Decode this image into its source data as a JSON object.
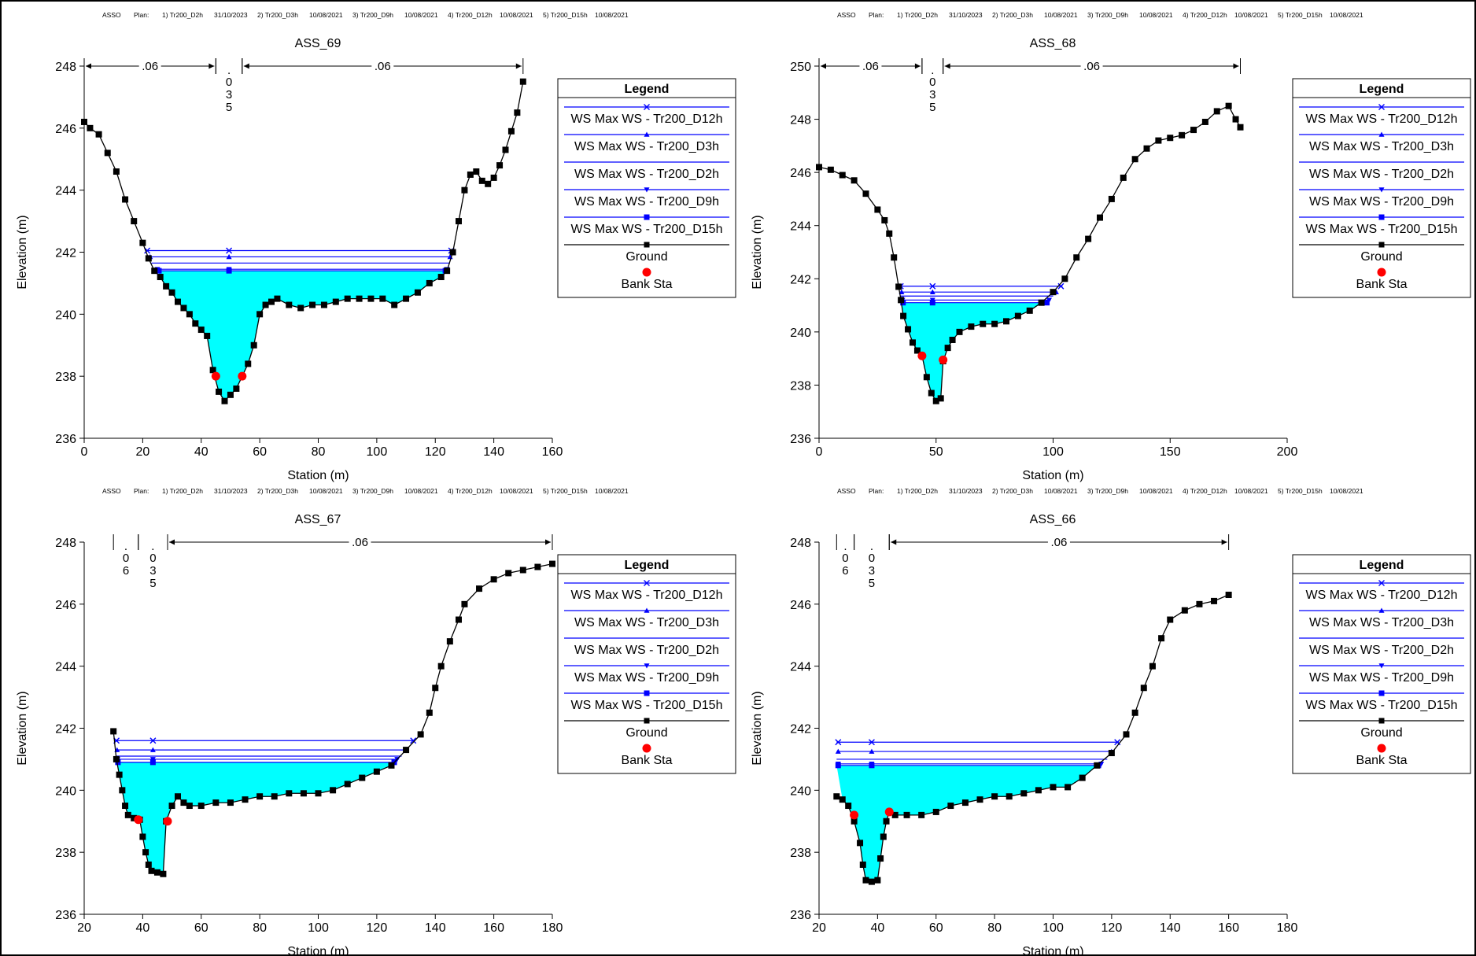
{
  "header": {
    "project": "ASSO",
    "plan_label": "Plan:",
    "plans": [
      {
        "label": "1) Tr200_D2h",
        "date": "31/10/2023"
      },
      {
        "label": "2) Tr200_D3h",
        "date": "10/08/2021"
      },
      {
        "label": "3) Tr200_D9h",
        "date": "10/08/2021"
      },
      {
        "label": "4) Tr200_D12h",
        "date": "10/08/2021"
      },
      {
        "label": "5) Tr200_D15h",
        "date": "10/08/2021"
      }
    ]
  },
  "colors": {
    "water_fill": "#00ffff",
    "ws_line": "#0000ff",
    "ground": "#000000",
    "bank": "#ff0000",
    "axis": "#000000"
  },
  "legend": {
    "title": "Legend",
    "entries": [
      {
        "label": "WS Max WS - Tr200_D12h",
        "marker": "x",
        "color": "#0000ff"
      },
      {
        "label": "WS Max WS - Tr200_D3h",
        "marker": "triangle-up",
        "color": "#0000ff"
      },
      {
        "label": "WS Max WS - Tr200_D2h",
        "marker": "none",
        "color": "#0000ff"
      },
      {
        "label": "WS Max WS - Tr200_D9h",
        "marker": "triangle-down",
        "color": "#0000ff"
      },
      {
        "label": "WS Max WS - Tr200_D15h",
        "marker": "square",
        "color": "#0000ff"
      },
      {
        "label": "Ground",
        "marker": "square",
        "color": "#000000"
      },
      {
        "label": "Bank Sta",
        "marker": "circle",
        "color": "#ff0000"
      }
    ]
  },
  "chart_data": [
    {
      "type": "area",
      "title": "ASS_69",
      "xlabel": "Station (m)",
      "ylabel": "Elevation (m)",
      "xlim": [
        0,
        160
      ],
      "ylim": [
        236,
        248
      ],
      "xticks": [
        0,
        20,
        40,
        60,
        80,
        100,
        120,
        140,
        160
      ],
      "yticks": [
        236,
        238,
        240,
        242,
        244,
        246,
        248
      ],
      "grid": false,
      "legend_position": "right",
      "ground": [
        [
          0,
          246.2
        ],
        [
          2,
          246
        ],
        [
          5,
          245.8
        ],
        [
          8,
          245.2
        ],
        [
          11,
          244.6
        ],
        [
          14,
          243.7
        ],
        [
          17,
          243.0
        ],
        [
          20,
          242.3
        ],
        [
          22,
          241.8
        ],
        [
          24,
          241.4
        ],
        [
          26,
          241.2
        ],
        [
          28,
          240.9
        ],
        [
          30,
          240.7
        ],
        [
          32,
          240.4
        ],
        [
          34,
          240.2
        ],
        [
          36,
          240.0
        ],
        [
          38,
          239.7
        ],
        [
          40,
          239.5
        ],
        [
          42,
          239.3
        ],
        [
          44,
          238.2
        ],
        [
          46,
          237.5
        ],
        [
          48,
          237.2
        ],
        [
          50,
          237.4
        ],
        [
          52,
          237.6
        ],
        [
          54,
          238.0
        ],
        [
          56,
          238.4
        ],
        [
          58,
          239.0
        ],
        [
          60,
          240.0
        ],
        [
          62,
          240.3
        ],
        [
          64,
          240.4
        ],
        [
          66,
          240.5
        ],
        [
          70,
          240.3
        ],
        [
          74,
          240.2
        ],
        [
          78,
          240.3
        ],
        [
          82,
          240.3
        ],
        [
          86,
          240.4
        ],
        [
          90,
          240.5
        ],
        [
          94,
          240.5
        ],
        [
          98,
          240.5
        ],
        [
          102,
          240.5
        ],
        [
          106,
          240.3
        ],
        [
          110,
          240.5
        ],
        [
          114,
          240.7
        ],
        [
          118,
          241.0
        ],
        [
          122,
          241.2
        ],
        [
          124,
          241.4
        ],
        [
          126,
          242.0
        ],
        [
          128,
          243.0
        ],
        [
          130,
          244.0
        ],
        [
          132,
          244.5
        ],
        [
          134,
          244.6
        ],
        [
          136,
          244.3
        ],
        [
          138,
          244.2
        ],
        [
          140,
          244.4
        ],
        [
          142,
          244.8
        ],
        [
          144,
          245.3
        ],
        [
          146,
          245.9
        ],
        [
          148,
          246.5
        ],
        [
          150,
          247.5
        ]
      ],
      "bank_stations": [
        [
          45,
          238.0
        ],
        [
          54,
          238.0
        ]
      ],
      "n_values": [
        {
          "from": 0,
          "to": 45,
          "value": ".06"
        },
        {
          "from": 45,
          "to": 54,
          "value": ".035"
        },
        {
          "from": 54,
          "to": 150,
          "value": ".06"
        }
      ],
      "water_surfaces": [
        {
          "name": "WS Max WS - Tr200_D12h",
          "marker": "x",
          "elev": 242.05,
          "from": 21.0,
          "to": 126.0
        },
        {
          "name": "WS Max WS - Tr200_D3h",
          "marker": "triangle-up",
          "elev": 241.85,
          "from": 22.0,
          "to": 125.6
        },
        {
          "name": "WS Max WS - Tr200_D2h",
          "marker": "none",
          "elev": 241.65,
          "from": 23.0,
          "to": 125.0
        },
        {
          "name": "WS Max WS - Tr200_D9h",
          "marker": "triangle-down",
          "elev": 241.45,
          "from": 24.5,
          "to": 124.5
        },
        {
          "name": "WS Max WS - Tr200_D15h",
          "marker": "square",
          "elev": 241.4,
          "from": 25.0,
          "to": 124.0
        }
      ]
    },
    {
      "type": "area",
      "title": "ASS_68",
      "xlabel": "Station (m)",
      "ylabel": "Elevation (m)",
      "xlim": [
        0,
        200
      ],
      "ylim": [
        236,
        250
      ],
      "xticks": [
        0,
        50,
        100,
        150,
        200
      ],
      "yticks": [
        236,
        238,
        240,
        242,
        244,
        246,
        248,
        250
      ],
      "grid": false,
      "legend_position": "right",
      "ground": [
        [
          0,
          246.2
        ],
        [
          5,
          246.1
        ],
        [
          10,
          245.9
        ],
        [
          15,
          245.7
        ],
        [
          20,
          245.2
        ],
        [
          25,
          244.6
        ],
        [
          28,
          244.2
        ],
        [
          30,
          243.7
        ],
        [
          32,
          242.8
        ],
        [
          34,
          241.7
        ],
        [
          35,
          241.2
        ],
        [
          36,
          240.6
        ],
        [
          38,
          240.1
        ],
        [
          40,
          239.6
        ],
        [
          42,
          239.3
        ],
        [
          44,
          239.1
        ],
        [
          46,
          238.3
        ],
        [
          48,
          237.7
        ],
        [
          50,
          237.4
        ],
        [
          52,
          237.5
        ],
        [
          53,
          238.9
        ],
        [
          55,
          239.4
        ],
        [
          57,
          239.7
        ],
        [
          60,
          240.0
        ],
        [
          65,
          240.2
        ],
        [
          70,
          240.3
        ],
        [
          75,
          240.3
        ],
        [
          80,
          240.4
        ],
        [
          85,
          240.6
        ],
        [
          90,
          240.8
        ],
        [
          95,
          241.1
        ],
        [
          100,
          241.5
        ],
        [
          105,
          242.0
        ],
        [
          110,
          242.8
        ],
        [
          115,
          243.5
        ],
        [
          120,
          244.3
        ],
        [
          125,
          245.0
        ],
        [
          130,
          245.8
        ],
        [
          135,
          246.5
        ],
        [
          140,
          246.9
        ],
        [
          145,
          247.2
        ],
        [
          150,
          247.3
        ],
        [
          155,
          247.4
        ],
        [
          160,
          247.6
        ],
        [
          165,
          247.9
        ],
        [
          170,
          248.3
        ],
        [
          175,
          248.5
        ],
        [
          178,
          248.0
        ],
        [
          180,
          247.7
        ]
      ],
      "bank_stations": [
        [
          44,
          239.1
        ],
        [
          53,
          238.95
        ]
      ],
      "n_values": [
        {
          "from": 0,
          "to": 44,
          "value": ".06"
        },
        {
          "from": 44,
          "to": 53,
          "value": ".035"
        },
        {
          "from": 53,
          "to": 180,
          "value": ".06"
        }
      ],
      "water_surfaces": [
        {
          "name": "WS Max WS - Tr200_D12h",
          "marker": "x",
          "elev": 241.72,
          "from": 34.2,
          "to": 104.0
        },
        {
          "name": "WS Max WS - Tr200_D3h",
          "marker": "triangle-up",
          "elev": 241.5,
          "from": 34.6,
          "to": 102.0
        },
        {
          "name": "WS Max WS - Tr200_D2h",
          "marker": "none",
          "elev": 241.35,
          "from": 34.8,
          "to": 100.0
        },
        {
          "name": "WS Max WS - Tr200_D9h",
          "marker": "triangle-down",
          "elev": 241.2,
          "from": 35.0,
          "to": 99.0
        },
        {
          "name": "WS Max WS - Tr200_D15h",
          "marker": "square",
          "elev": 241.1,
          "from": 35.2,
          "to": 98.0
        }
      ]
    },
    {
      "type": "area",
      "title": "ASS_67",
      "xlabel": "Station (m)",
      "ylabel": "Elevation (m)",
      "xlim": [
        20,
        180
      ],
      "ylim": [
        236,
        248
      ],
      "xticks": [
        20,
        40,
        60,
        80,
        100,
        120,
        140,
        160,
        180
      ],
      "yticks": [
        236,
        238,
        240,
        242,
        244,
        246,
        248
      ],
      "grid": false,
      "legend_position": "right",
      "ground": [
        [
          30,
          241.9
        ],
        [
          31,
          241.0
        ],
        [
          32,
          240.5
        ],
        [
          33,
          240.0
        ],
        [
          34,
          239.5
        ],
        [
          35,
          239.2
        ],
        [
          37,
          239.1
        ],
        [
          39,
          239.05
        ],
        [
          40,
          238.5
        ],
        [
          41,
          238.0
        ],
        [
          42,
          237.6
        ],
        [
          43,
          237.4
        ],
        [
          45,
          237.35
        ],
        [
          47,
          237.3
        ],
        [
          48,
          239.0
        ],
        [
          50,
          239.5
        ],
        [
          52,
          239.8
        ],
        [
          54,
          239.6
        ],
        [
          56,
          239.5
        ],
        [
          60,
          239.5
        ],
        [
          65,
          239.6
        ],
        [
          70,
          239.6
        ],
        [
          75,
          239.7
        ],
        [
          80,
          239.8
        ],
        [
          85,
          239.8
        ],
        [
          90,
          239.9
        ],
        [
          95,
          239.9
        ],
        [
          100,
          239.9
        ],
        [
          105,
          240.0
        ],
        [
          110,
          240.2
        ],
        [
          115,
          240.4
        ],
        [
          120,
          240.6
        ],
        [
          125,
          240.8
        ],
        [
          130,
          241.3
        ],
        [
          135,
          241.8
        ],
        [
          138,
          242.5
        ],
        [
          140,
          243.3
        ],
        [
          142,
          244.0
        ],
        [
          145,
          244.8
        ],
        [
          148,
          245.5
        ],
        [
          150,
          246.0
        ],
        [
          155,
          246.5
        ],
        [
          160,
          246.8
        ],
        [
          165,
          247.0
        ],
        [
          170,
          247.1
        ],
        [
          175,
          247.2
        ],
        [
          180,
          247.3
        ]
      ],
      "bank_stations": [
        [
          38.5,
          239.05
        ],
        [
          48.5,
          239.0
        ]
      ],
      "n_values": [
        {
          "from": 30,
          "to": 38.5,
          "value": ".06"
        },
        {
          "from": 38.5,
          "to": 48.5,
          "value": ".035"
        },
        {
          "from": 48.5,
          "to": 180,
          "value": ".06"
        }
      ],
      "water_surfaces": [
        {
          "name": "WS Max WS - Tr200_D12h",
          "marker": "x",
          "elev": 241.6,
          "from": 30.5,
          "to": 133.0
        },
        {
          "name": "WS Max WS - Tr200_D3h",
          "marker": "triangle-up",
          "elev": 241.3,
          "from": 30.7,
          "to": 130.5
        },
        {
          "name": "WS Max WS - Tr200_D2h",
          "marker": "none",
          "elev": 241.1,
          "from": 30.8,
          "to": 128.5
        },
        {
          "name": "WS Max WS - Tr200_D9h",
          "marker": "triangle-down",
          "elev": 241.0,
          "from": 30.9,
          "to": 127.5
        },
        {
          "name": "WS Max WS - Tr200_D15h",
          "marker": "square",
          "elev": 240.9,
          "from": 31.0,
          "to": 126.5
        }
      ]
    },
    {
      "type": "area",
      "title": "ASS_66",
      "xlabel": "Station (m)",
      "ylabel": "Elevation (m)",
      "xlim": [
        20,
        180
      ],
      "ylim": [
        236,
        248
      ],
      "xticks": [
        20,
        40,
        60,
        80,
        100,
        120,
        140,
        160,
        180
      ],
      "yticks": [
        236,
        238,
        240,
        242,
        244,
        246,
        248
      ],
      "grid": false,
      "legend_position": "right",
      "ground": [
        [
          26,
          239.8
        ],
        [
          28,
          239.7
        ],
        [
          30,
          239.5
        ],
        [
          32,
          239.0
        ],
        [
          34,
          238.3
        ],
        [
          35,
          237.6
        ],
        [
          36,
          237.1
        ],
        [
          38,
          237.05
        ],
        [
          40,
          237.1
        ],
        [
          41,
          237.8
        ],
        [
          42,
          238.5
        ],
        [
          43,
          239.0
        ],
        [
          44,
          239.3
        ],
        [
          46,
          239.2
        ],
        [
          50,
          239.2
        ],
        [
          55,
          239.2
        ],
        [
          60,
          239.3
        ],
        [
          65,
          239.5
        ],
        [
          70,
          239.6
        ],
        [
          75,
          239.7
        ],
        [
          80,
          239.8
        ],
        [
          85,
          239.8
        ],
        [
          90,
          239.9
        ],
        [
          95,
          240.0
        ],
        [
          100,
          240.1
        ],
        [
          105,
          240.1
        ],
        [
          110,
          240.4
        ],
        [
          115,
          240.8
        ],
        [
          120,
          241.2
        ],
        [
          125,
          241.8
        ],
        [
          128,
          242.5
        ],
        [
          131,
          243.3
        ],
        [
          134,
          244.0
        ],
        [
          137,
          244.9
        ],
        [
          140,
          245.5
        ],
        [
          145,
          245.8
        ],
        [
          150,
          246.0
        ],
        [
          155,
          246.1
        ],
        [
          160,
          246.3
        ]
      ],
      "bank_stations": [
        [
          32,
          239.2
        ],
        [
          44,
          239.3
        ]
      ],
      "n_values": [
        {
          "from": 26,
          "to": 32,
          "value": ".06"
        },
        {
          "from": 32,
          "to": 44,
          "value": ".035"
        },
        {
          "from": 44,
          "to": 160,
          "value": ".06"
        }
      ],
      "water_surfaces": [
        {
          "name": "WS Max WS - Tr200_D12h",
          "marker": "x",
          "elev": 241.55,
          "from": 26.0,
          "to": 122.5
        },
        {
          "name": "WS Max WS - Tr200_D3h",
          "marker": "triangle-up",
          "elev": 241.25,
          "from": 26.0,
          "to": 120.5
        },
        {
          "name": "WS Max WS - Tr200_D2h",
          "marker": "none",
          "elev": 241.0,
          "from": 26.0,
          "to": 118.5
        },
        {
          "name": "WS Max WS - Tr200_D9h",
          "marker": "triangle-down",
          "elev": 240.85,
          "from": 26.0,
          "to": 117.0
        },
        {
          "name": "WS Max WS - Tr200_D15h",
          "marker": "square",
          "elev": 240.8,
          "from": 26.0,
          "to": 116.0
        }
      ]
    }
  ]
}
